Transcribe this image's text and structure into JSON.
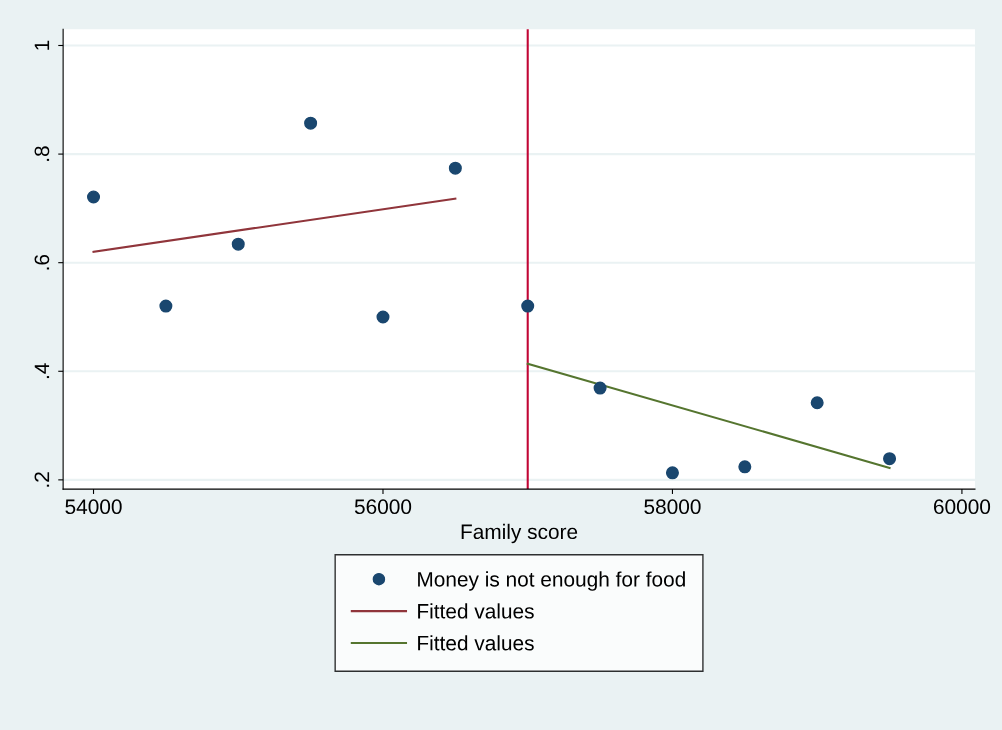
{
  "chart_data": {
    "type": "scatter",
    "xlabel": "Family score",
    "xlim": [
      53790,
      60090
    ],
    "xticks": [
      54000,
      56000,
      58000,
      60000
    ],
    "ylim": [
      0.183,
      1.03
    ],
    "yticks": [
      {
        "value": 0.2,
        "label": ".2"
      },
      {
        "value": 0.4,
        "label": ".4"
      },
      {
        "value": 0.6,
        "label": ".6"
      },
      {
        "value": 0.8,
        "label": ".8"
      },
      {
        "value": 1,
        "label": "1"
      }
    ],
    "grid": "y",
    "legend": "bottom",
    "series": [
      {
        "name": "Money is not enough for food",
        "marker": "circle",
        "color": "#1a476f",
        "x": [
          54000,
          54500,
          55000,
          55500,
          56000,
          56500,
          57000,
          57500,
          58000,
          58500,
          59000,
          59500
        ],
        "values": [
          0.721,
          0.52,
          0.634,
          0.857,
          0.5,
          0.774,
          0.52,
          0.369,
          0.213,
          0.224,
          0.342,
          0.239
        ]
      },
      {
        "name": "Fitted values",
        "type": "line",
        "color": "#90353b",
        "x": [
          54000,
          56500
        ],
        "values": [
          0.62,
          0.718
        ]
      },
      {
        "name": "Fitted values",
        "type": "line",
        "color": "#55752f",
        "x": [
          57000,
          59500
        ],
        "values": [
          0.414,
          0.222
        ]
      }
    ],
    "ref_lines": [
      {
        "axis": "x",
        "value": 57000,
        "color": "#c10534"
      }
    ]
  }
}
